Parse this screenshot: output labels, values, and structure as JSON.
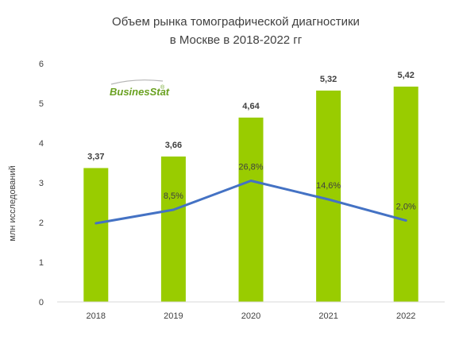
{
  "chart_data": {
    "type": "bar",
    "title_lines": [
      "Объем рынка томографической диагностики",
      "в Москве в 2018-2022 гг"
    ],
    "ylabel": "млн исследований",
    "xlabel": "",
    "categories": [
      "2018",
      "2019",
      "2020",
      "2021",
      "2022"
    ],
    "ylim": [
      0,
      6
    ],
    "yticks": [
      "0",
      "1",
      "2",
      "3",
      "4",
      "5",
      "6"
    ],
    "grid": false,
    "series": [
      {
        "type": "bar",
        "values": [
          3.37,
          3.66,
          4.64,
          5.32,
          5.42
        ],
        "labels": [
          "3,37",
          "3,66",
          "4,64",
          "5,32",
          "5,42"
        ],
        "color": "#99cc00"
      },
      {
        "type": "line",
        "plotted_on_primary_axis": [
          1.98,
          2.32,
          3.05,
          2.58,
          2.05
        ],
        "labels": [
          "",
          "8,5%",
          "26,8%",
          "14,6%",
          "2,0%"
        ],
        "color": "#4472c4"
      }
    ]
  },
  "logo": {
    "text_a": "Busines",
    "text_b": "Stat",
    "mark": "®",
    "color_a": "#6aa121",
    "color_b": "#6aa121"
  }
}
